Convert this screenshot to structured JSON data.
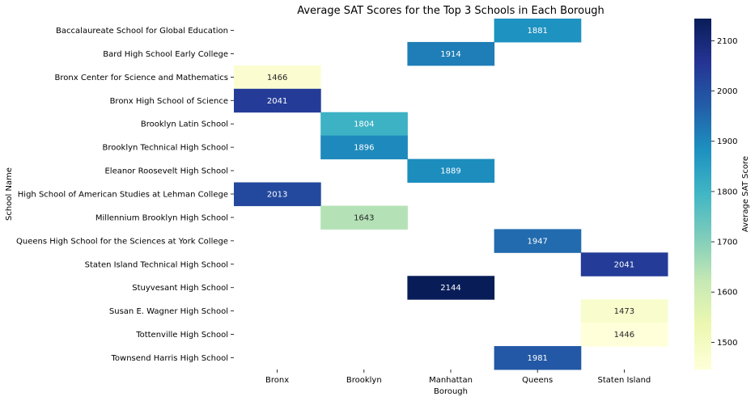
{
  "chart_data": {
    "type": "heatmap",
    "title": "Average SAT Scores for the Top 3 Schools in Each Borough",
    "xlabel": "Borough",
    "ylabel": "School Name",
    "colorbar_label": "Average SAT Score",
    "columns": [
      "Bronx",
      "Brooklyn",
      "Manhattan",
      "Queens",
      "Staten Island"
    ],
    "rows": [
      "Baccalaureate School for Global Education",
      "Bard High School Early College",
      "Bronx Center for Science and Mathematics",
      "Bronx High School of Science",
      "Brooklyn Latin School",
      "Brooklyn Technical High School",
      "Eleanor Roosevelt High School",
      "High School of American Studies at Lehman College",
      "Millennium Brooklyn High School",
      "Queens High School for the Sciences at York College",
      "Staten Island Technical High School",
      "Stuyvesant High School",
      "Susan E. Wagner High School",
      "Tottenville High School",
      "Townsend Harris High School"
    ],
    "values": [
      [
        null,
        null,
        null,
        1881,
        null
      ],
      [
        null,
        null,
        1914,
        null,
        null
      ],
      [
        1466,
        null,
        null,
        null,
        null
      ],
      [
        2041,
        null,
        null,
        null,
        null
      ],
      [
        null,
        1804,
        null,
        null,
        null
      ],
      [
        null,
        1896,
        null,
        null,
        null
      ],
      [
        null,
        null,
        1889,
        null,
        null
      ],
      [
        2013,
        null,
        null,
        null,
        null
      ],
      [
        null,
        1643,
        null,
        null,
        null
      ],
      [
        null,
        null,
        null,
        1947,
        null
      ],
      [
        null,
        null,
        null,
        null,
        2041
      ],
      [
        null,
        null,
        2144,
        null,
        null
      ],
      [
        null,
        null,
        null,
        null,
        1473
      ],
      [
        null,
        null,
        null,
        null,
        1446
      ],
      [
        null,
        null,
        null,
        1981,
        null
      ]
    ],
    "colormap": "YlGnBu",
    "vmin": 1446,
    "vmax": 2144,
    "colorbar_ticks": [
      1500,
      1600,
      1700,
      1800,
      1900,
      2000,
      2100
    ],
    "grid": false,
    "legend": "colorbar-right"
  }
}
